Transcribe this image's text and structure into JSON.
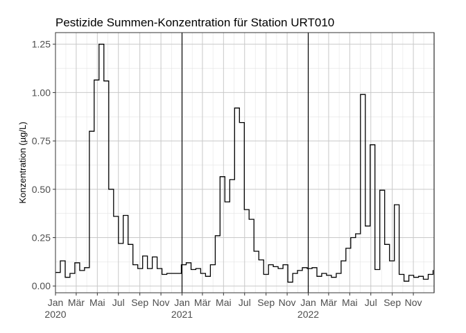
{
  "chart_data": {
    "type": "line",
    "style": "step",
    "title": "Pestizide Summen-Konzentration für Station URT010",
    "xlabel": "",
    "ylabel": "Konzentration (µg/L)",
    "ylim": [
      -0.035,
      1.31
    ],
    "y_ticks": [
      0,
      0.25,
      0.5,
      0.75,
      1.0,
      1.25
    ],
    "y_tick_labels": [
      "0.00",
      "0.25",
      "0.50",
      "0.75",
      "1.00",
      "1.25"
    ],
    "xlim": [
      "2020-01-01",
      "2022-12-31"
    ],
    "x_ticks": [
      {
        "date": "2020-01-01",
        "label": "Jan",
        "year": "2020"
      },
      {
        "date": "2020-03-01",
        "label": "Mär",
        "year": ""
      },
      {
        "date": "2020-05-01",
        "label": "Mai",
        "year": ""
      },
      {
        "date": "2020-07-01",
        "label": "Jul",
        "year": ""
      },
      {
        "date": "2020-09-01",
        "label": "Sep",
        "year": ""
      },
      {
        "date": "2020-11-01",
        "label": "Nov",
        "year": ""
      },
      {
        "date": "2021-01-01",
        "label": "Jan",
        "year": "2021"
      },
      {
        "date": "2021-03-01",
        "label": "Mär",
        "year": ""
      },
      {
        "date": "2021-05-01",
        "label": "Mai",
        "year": ""
      },
      {
        "date": "2021-07-01",
        "label": "Jul",
        "year": ""
      },
      {
        "date": "2021-09-01",
        "label": "Sep",
        "year": ""
      },
      {
        "date": "2021-11-01",
        "label": "Nov",
        "year": ""
      },
      {
        "date": "2022-01-01",
        "label": "Jan",
        "year": "2022"
      },
      {
        "date": "2022-03-01",
        "label": "Mär",
        "year": ""
      },
      {
        "date": "2022-05-01",
        "label": "Mai",
        "year": ""
      },
      {
        "date": "2022-07-01",
        "label": "Jul",
        "year": ""
      },
      {
        "date": "2022-09-01",
        "label": "Sep",
        "year": ""
      },
      {
        "date": "2022-11-01",
        "label": "Nov",
        "year": ""
      }
    ],
    "year_lines": [
      "2021-01-01",
      "2022-01-01",
      "2022-12-31"
    ],
    "grid": true,
    "legend": "none",
    "series": [
      {
        "x": [
          "2020-01-01",
          "2020-01-15",
          "2020-01-29",
          "2020-02-12",
          "2020-02-26",
          "2020-03-11",
          "2020-03-25",
          "2020-04-08",
          "2020-04-22",
          "2020-05-06",
          "2020-05-20",
          "2020-06-03",
          "2020-06-17",
          "2020-07-01",
          "2020-07-15",
          "2020-07-29",
          "2020-08-12",
          "2020-08-26",
          "2020-09-09",
          "2020-09-23",
          "2020-10-07",
          "2020-10-21",
          "2020-11-04",
          "2020-11-18",
          "2020-12-02",
          "2020-12-16",
          "2020-12-30",
          "2021-01-13",
          "2021-01-27",
          "2021-02-10",
          "2021-02-24",
          "2021-03-10",
          "2021-03-24",
          "2021-04-07",
          "2021-04-21",
          "2021-05-05",
          "2021-05-19",
          "2021-06-02",
          "2021-06-16",
          "2021-06-30",
          "2021-07-14",
          "2021-07-28",
          "2021-08-11",
          "2021-08-25",
          "2021-09-08",
          "2021-09-22",
          "2021-10-06",
          "2021-10-20",
          "2021-11-03",
          "2021-11-17",
          "2021-12-01",
          "2021-12-15",
          "2021-12-29",
          "2022-01-12",
          "2022-01-26",
          "2022-02-09",
          "2022-02-23",
          "2022-03-09",
          "2022-03-23",
          "2022-04-06",
          "2022-04-20",
          "2022-05-04",
          "2022-05-18",
          "2022-06-01",
          "2022-06-15",
          "2022-06-29",
          "2022-07-13",
          "2022-07-27",
          "2022-08-10",
          "2022-08-24",
          "2022-09-07",
          "2022-09-21",
          "2022-10-05",
          "2022-10-19",
          "2022-11-02",
          "2022-11-16",
          "2022-11-30",
          "2022-12-14",
          "2022-12-28"
        ],
        "values": [
          0.07,
          0.13,
          0.045,
          0.065,
          0.12,
          0.08,
          0.095,
          0.8,
          1.065,
          1.25,
          1.06,
          0.5,
          0.36,
          0.22,
          0.365,
          0.215,
          0.11,
          0.09,
          0.155,
          0.09,
          0.15,
          0.09,
          0.06,
          0.065,
          0.065,
          0.065,
          0.11,
          0.12,
          0.085,
          0.09,
          0.065,
          0.05,
          0.11,
          0.26,
          0.565,
          0.435,
          0.55,
          0.92,
          0.845,
          0.395,
          0.345,
          0.18,
          0.135,
          0.06,
          0.11,
          0.1,
          0.09,
          0.11,
          0.02,
          0.065,
          0.08,
          0.095,
          0.09,
          0.095,
          0.05,
          0.065,
          0.055,
          0.045,
          0.065,
          0.13,
          0.195,
          0.25,
          0.27,
          0.99,
          0.31,
          0.73,
          0.085,
          0.495,
          0.215,
          0.13,
          0.42,
          0.06,
          0.025,
          0.055,
          0.045,
          0.05,
          0.035,
          0.06,
          0.08
        ]
      }
    ]
  }
}
